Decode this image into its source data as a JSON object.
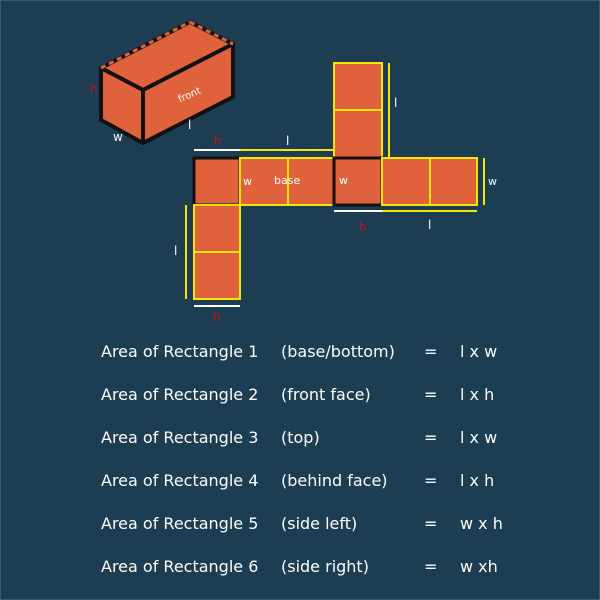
{
  "diagram": {
    "box": {
      "front_label": "front",
      "h_label": "h",
      "w_label": "w",
      "l_label": "l"
    },
    "net": {
      "base_label": "base",
      "labels": {
        "h_top": "h",
        "l_top": "l",
        "w_left": "w",
        "w_mid": "w",
        "l_right_vertical": "l",
        "w_right": "w",
        "h_mid": "h",
        "l_bottom": "l",
        "l_left_vertical": "l",
        "h_bottom": "h"
      }
    },
    "colors": {
      "background": "#1d3d52",
      "face_fill": "#e0623c",
      "edge_yellow": "#f5e60a",
      "edge_dark": "#111111",
      "label_red": "#cc1010",
      "label_white": "#ffffff"
    }
  },
  "formulas": [
    {
      "name": "Area of Rectangle 1",
      "desc": "(base/bottom)",
      "eq": "=",
      "formula": "l x w"
    },
    {
      "name": "Area of Rectangle 2",
      "desc": "(front face)",
      "eq": "=",
      "formula": "l x h"
    },
    {
      "name": "Area of Rectangle 3",
      "desc": "(top)",
      "eq": "=",
      "formula": "l x w"
    },
    {
      "name": "Area of Rectangle 4",
      "desc": "(behind face)",
      "eq": "=",
      "formula": "l x h"
    },
    {
      "name": "Area of Rectangle 5",
      "desc": "(side left)",
      "eq": "=",
      "formula": "w x h"
    },
    {
      "name": "Area of Rectangle 6",
      "desc": "(side right)",
      "eq": "=",
      "formula": "w xh"
    }
  ]
}
